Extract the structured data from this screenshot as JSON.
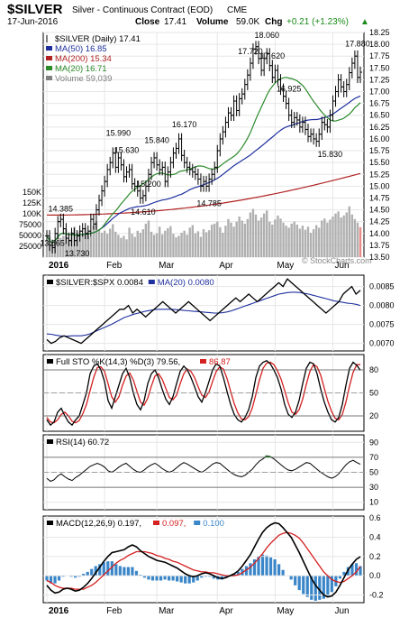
{
  "header": {
    "symbol": "$SILVER",
    "description": "Silver - Continuous Contract (EOD)",
    "exchange": "CME",
    "date": "17-Jun-2016",
    "close_label": "Close",
    "close_value": "17.41",
    "volume_label": "Volume",
    "volume_value": "59.0K",
    "chg_label": "Chg",
    "chg_value": "+0.21 (+1.23%)",
    "chg_arrow": "▲",
    "watermark": "© StockCharts.com"
  },
  "colors": {
    "price": "#000000",
    "ma50": "#1e2f9e",
    "ma200": "#b22222",
    "ma20": "#2a8a2a",
    "volume": "#b0b0b0",
    "volume_last": "#e88b8b",
    "stoch_k": "#000000",
    "stoch_d": "#d42020",
    "macd_line": "#000000",
    "macd_signal": "#d42020",
    "macd_hist": "#3a86c8",
    "rsi_fill": "#2f7d32",
    "ratio_ma": "#1e2f9e",
    "chg_up": "#1a8a1a",
    "grid": "#e6e6e6"
  },
  "chart_data": [
    {
      "type": "ohlc",
      "panel": "price",
      "legend": [
        {
          "text": "$SILVER (Daily) 17.41",
          "color": "#000000",
          "marker": "ohlc-icon"
        },
        {
          "text": "MA(50) 16.85",
          "color": "#1e2f9e"
        },
        {
          "text": "MA(200) 15.34",
          "color": "#b22222"
        },
        {
          "text": "MA(20) 16.71",
          "color": "#2a8a2a"
        },
        {
          "text": "Volume 59,039",
          "color": "#808080"
        }
      ],
      "x_labels": [
        "2016",
        "Feb",
        "Mar",
        "Apr",
        "May",
        "Jun"
      ],
      "y_ticks": [
        "18.25",
        "18.00",
        "17.75",
        "17.50",
        "17.25",
        "17.00",
        "16.75",
        "16.50",
        "16.25",
        "16.00",
        "15.75",
        "15.50",
        "15.25",
        "15.00",
        "14.75",
        "14.50",
        "14.25",
        "14.00",
        "13.75",
        "13.50"
      ],
      "ylim": [
        13.5,
        18.25
      ],
      "annotations": [
        {
          "label": "18.060",
          "value": 18.06,
          "bar": 80
        },
        {
          "label": "17.880",
          "value": 17.88,
          "bar": 113
        },
        {
          "label": "17.720",
          "value": 17.72,
          "bar": 74
        },
        {
          "label": "17.620",
          "value": 17.62,
          "bar": 82
        },
        {
          "label": "16.925",
          "value": 16.925,
          "bar": 88
        },
        {
          "label": "16.170",
          "value": 16.17,
          "bar": 50
        },
        {
          "label": "15.990",
          "value": 15.99,
          "bar": 26
        },
        {
          "label": "15.840",
          "value": 15.84,
          "bar": 40
        },
        {
          "label": "15.630",
          "value": 15.63,
          "bar": 29
        },
        {
          "label": "15.830",
          "value": 15.83,
          "bar": 103
        },
        {
          "label": "15.200",
          "value": 15.2,
          "bar": 37
        },
        {
          "label": "14.785",
          "value": 14.785,
          "bar": 59
        },
        {
          "label": "14.610",
          "value": 14.61,
          "bar": 35
        },
        {
          "label": "14.385",
          "value": 14.385,
          "bar": 5
        },
        {
          "label": "13.730",
          "value": 13.73,
          "bar": 11
        },
        {
          "label": "13.665",
          "value": 13.665,
          "bar": 2
        }
      ],
      "close": [
        13.95,
        13.75,
        13.7,
        14.0,
        14.25,
        14.3,
        14.1,
        13.9,
        13.85,
        14.0,
        13.85,
        13.95,
        14.05,
        14.1,
        14.0,
        14.05,
        14.3,
        14.2,
        14.5,
        14.7,
        14.9,
        15.1,
        15.35,
        15.5,
        15.7,
        15.4,
        15.6,
        15.45,
        15.2,
        15.3,
        15.35,
        15.05,
        15.0,
        14.9,
        14.75,
        14.8,
        15.0,
        15.25,
        15.5,
        15.6,
        15.45,
        15.35,
        15.4,
        15.1,
        15.3,
        15.5,
        15.7,
        15.8,
        16.0,
        15.65,
        15.5,
        15.4,
        15.35,
        15.3,
        15.25,
        15.15,
        15.0,
        15.1,
        15.0,
        15.15,
        15.25,
        15.4,
        15.75,
        16.0,
        16.15,
        16.35,
        16.55,
        16.5,
        16.8,
        16.6,
        16.85,
        16.95,
        17.15,
        17.35,
        17.6,
        17.9,
        17.95,
        17.7,
        17.45,
        17.7,
        17.8,
        17.55,
        17.3,
        17.45,
        17.25,
        17.05,
        16.9,
        16.75,
        16.5,
        16.35,
        16.45,
        16.4,
        16.25,
        16.35,
        16.2,
        16.05,
        16.1,
        16.0,
        15.95,
        16.1,
        16.35,
        16.3,
        16.25,
        16.5,
        16.8,
        17.0,
        17.25,
        17.1,
        17.0,
        17.15,
        17.4,
        17.6,
        17.75,
        17.3,
        17.41
      ],
      "volume_k": [
        30,
        40,
        28,
        32,
        45,
        38,
        42,
        55,
        35,
        50,
        60,
        48,
        52,
        44,
        58,
        50,
        40,
        62,
        70,
        55,
        48,
        52,
        46,
        56,
        65,
        50,
        44,
        38,
        42,
        35,
        58,
        46,
        40,
        52,
        48,
        55,
        66,
        72,
        50,
        44,
        47,
        60,
        45,
        52,
        57,
        61,
        46,
        39,
        42,
        48,
        52,
        44,
        58,
        63,
        47,
        51,
        40,
        55,
        49,
        53,
        64,
        66,
        70,
        59,
        48,
        62,
        75,
        68,
        60,
        70,
        80,
        72,
        66,
        75,
        88,
        95,
        84,
        72,
        78,
        86,
        92,
        70,
        64,
        74,
        82,
        76,
        68,
        62,
        58,
        66,
        70,
        64,
        56,
        62,
        54,
        60,
        48,
        55,
        63,
        58,
        72,
        76,
        68,
        74,
        80,
        86,
        90,
        78,
        82,
        88,
        100,
        84,
        75,
        68,
        59
      ],
      "volume_ticks": [
        "150K",
        "125K",
        "100K",
        "75000",
        "50000",
        "25000"
      ]
    },
    {
      "type": "line",
      "panel": "ratio",
      "legend": [
        {
          "text": "$SILVER:$SPX 0.0084",
          "color": "#000000"
        },
        {
          "text": "MA(20) 0.0080",
          "color": "#1e2f9e"
        }
      ],
      "y_ticks": [
        "0.0085",
        "0.0080",
        "0.0075",
        "0.0070"
      ],
      "ylim": [
        0.0068,
        0.0088
      ],
      "values": [
        0.0071,
        0.007,
        0.00705,
        0.00715,
        0.0072,
        0.00715,
        0.0071,
        0.00705,
        0.007,
        0.0071,
        0.0072,
        0.0073,
        0.0074,
        0.0075,
        0.0076,
        0.0077,
        0.0078,
        0.0079,
        0.0079,
        0.008,
        0.0078,
        0.0079,
        0.0078,
        0.0077,
        0.0078,
        0.0079,
        0.008,
        0.0081,
        0.008,
        0.0079,
        0.0078,
        0.0079,
        0.008,
        0.0081,
        0.008,
        0.0079,
        0.0078,
        0.0077,
        0.0076,
        0.0077,
        0.0078,
        0.0079,
        0.008,
        0.0081,
        0.0082,
        0.0081,
        0.0082,
        0.0083,
        0.0082,
        0.0081,
        0.0082,
        0.0083,
        0.0084,
        0.0085,
        0.0086,
        0.0085,
        0.0087,
        0.0086,
        0.0085,
        0.0084,
        0.0083,
        0.0082,
        0.0081,
        0.008,
        0.0079,
        0.0078,
        0.0079,
        0.008,
        0.0081,
        0.0083,
        0.0084,
        0.0085,
        0.0083,
        0.0084
      ],
      "ma": [
        0.00725,
        0.00724,
        0.00722,
        0.0072,
        0.00719,
        0.00719,
        0.0072,
        0.0072,
        0.0072,
        0.00722,
        0.00725,
        0.0073,
        0.00735,
        0.0074,
        0.00745,
        0.0075,
        0.00756,
        0.00762,
        0.00768,
        0.00772,
        0.00776,
        0.00779,
        0.00782,
        0.00785,
        0.00787,
        0.00789,
        0.0079,
        0.0079,
        0.0079,
        0.0079,
        0.00789,
        0.00788,
        0.00787,
        0.00786,
        0.00785,
        0.00784,
        0.00783,
        0.00782,
        0.00781,
        0.0078,
        0.0078,
        0.00781,
        0.00783,
        0.00786,
        0.0079,
        0.00794,
        0.00798,
        0.00802,
        0.00806,
        0.0081,
        0.00814,
        0.00818,
        0.00822,
        0.00826,
        0.0083,
        0.00832,
        0.00834,
        0.00835,
        0.00835,
        0.00834,
        0.00832,
        0.0083,
        0.00827,
        0.00824,
        0.00821,
        0.00818,
        0.00815,
        0.00812,
        0.0081,
        0.00808,
        0.00806,
        0.00805,
        0.00803,
        0.008
      ]
    },
    {
      "type": "line",
      "panel": "stochastic",
      "legend": [
        {
          "text": "Full STO %K(14,3) %D(3) 79.56,",
          "color": "#000000"
        },
        {
          "text": "86.87",
          "color": "#d42020"
        }
      ],
      "y_ticks": [
        "80",
        "50",
        "20"
      ],
      "ylim": [
        0,
        100
      ],
      "k": [
        15,
        8,
        12,
        25,
        30,
        20,
        12,
        8,
        15,
        20,
        35,
        50,
        75,
        85,
        88,
        80,
        65,
        40,
        30,
        45,
        60,
        75,
        82,
        70,
        50,
        35,
        28,
        40,
        62,
        75,
        80,
        70,
        55,
        42,
        35,
        45,
        62,
        78,
        85,
        80,
        70,
        58,
        45,
        38,
        50,
        65,
        80,
        88,
        85,
        70,
        52,
        35,
        22,
        15,
        12,
        18,
        28,
        45,
        70,
        85,
        90,
        92,
        88,
        80,
        70,
        55,
        35,
        22,
        18,
        25,
        40,
        62,
        82,
        90,
        88,
        75,
        55,
        38,
        25,
        15,
        12,
        18,
        35,
        60,
        82,
        90,
        86,
        79.56
      ],
      "d": [
        18,
        12,
        11,
        15,
        22,
        25,
        20,
        13,
        11,
        14,
        23,
        35,
        53,
        70,
        83,
        84,
        78,
        62,
        45,
        38,
        45,
        60,
        72,
        76,
        67,
        52,
        38,
        34,
        43,
        59,
        72,
        75,
        68,
        56,
        44,
        41,
        47,
        62,
        75,
        81,
        78,
        70,
        58,
        47,
        44,
        51,
        65,
        78,
        84,
        81,
        69,
        52,
        36,
        24,
        16,
        15,
        19,
        30,
        48,
        67,
        82,
        89,
        90,
        87,
        79,
        68,
        53,
        37,
        25,
        22,
        28,
        42,
        61,
        78,
        87,
        84,
        73,
        56,
        39,
        26,
        17,
        15,
        22,
        38,
        59,
        77,
        86.87,
        86.87
      ]
    },
    {
      "type": "line",
      "panel": "rsi",
      "legend": [
        {
          "text": "RSI(14) 60.72",
          "color": "#000000"
        }
      ],
      "y_ticks": [
        "90",
        "70",
        "50",
        "30",
        "10"
      ],
      "ylim": [
        0,
        100
      ],
      "values": [
        42,
        38,
        40,
        45,
        48,
        44,
        41,
        39,
        43,
        46,
        50,
        54,
        58,
        60,
        62,
        60,
        57,
        52,
        50,
        53,
        57,
        60,
        62,
        58,
        54,
        51,
        50,
        53,
        57,
        60,
        62,
        59,
        55,
        52,
        50,
        52,
        56,
        60,
        63,
        61,
        58,
        55,
        52,
        50,
        53,
        57,
        61,
        63,
        62,
        58,
        54,
        50,
        47,
        45,
        44,
        46,
        50,
        54,
        60,
        65,
        68,
        72,
        71,
        68,
        64,
        60,
        56,
        53,
        52,
        54,
        57,
        60,
        63,
        62,
        58,
        54,
        50,
        47,
        44,
        42,
        44,
        48,
        54,
        60,
        64,
        66,
        63,
        60.72
      ]
    },
    {
      "type": "line",
      "panel": "macd",
      "legend": [
        {
          "text": "MACD(12,26,9) 0.197,",
          "color": "#000000"
        },
        {
          "text": "0.097,",
          "color": "#d42020"
        },
        {
          "text": "0.100",
          "color": "#3a86c8"
        }
      ],
      "y_ticks": [
        "0.6",
        "0.4",
        "0.2",
        "0.0",
        "-0.2"
      ],
      "ylim": [
        -0.28,
        0.62
      ],
      "macd": [
        -0.1,
        -0.15,
        -0.18,
        -0.17,
        -0.14,
        -0.13,
        -0.14,
        -0.16,
        -0.15,
        -0.12,
        -0.08,
        -0.03,
        0.03,
        0.09,
        0.15,
        0.2,
        0.24,
        0.25,
        0.26,
        0.27,
        0.3,
        0.32,
        0.3,
        0.26,
        0.23,
        0.2,
        0.18,
        0.16,
        0.15,
        0.14,
        0.12,
        0.1,
        0.08,
        0.05,
        0.02,
        0.0,
        -0.01,
        0.0,
        0.02,
        0.03,
        0.02,
        0.0,
        -0.02,
        -0.03,
        -0.02,
        0.0,
        0.02,
        0.05,
        0.1,
        0.16,
        0.22,
        0.3,
        0.38,
        0.45,
        0.5,
        0.53,
        0.55,
        0.54,
        0.5,
        0.45,
        0.4,
        0.32,
        0.24,
        0.15,
        0.06,
        -0.03,
        -0.1,
        -0.15,
        -0.2,
        -0.22,
        -0.21,
        -0.17,
        -0.1,
        -0.02,
        0.06,
        0.12,
        0.17,
        0.197
      ],
      "signal": [
        -0.05,
        -0.07,
        -0.1,
        -0.12,
        -0.13,
        -0.13,
        -0.13,
        -0.14,
        -0.14,
        -0.14,
        -0.12,
        -0.1,
        -0.07,
        -0.03,
        0.01,
        0.05,
        0.09,
        0.13,
        0.16,
        0.18,
        0.21,
        0.23,
        0.25,
        0.25,
        0.25,
        0.24,
        0.23,
        0.21,
        0.2,
        0.18,
        0.17,
        0.15,
        0.14,
        0.12,
        0.1,
        0.08,
        0.06,
        0.05,
        0.04,
        0.04,
        0.03,
        0.03,
        0.02,
        0.01,
        0.0,
        0.0,
        0.0,
        0.01,
        0.03,
        0.06,
        0.09,
        0.13,
        0.18,
        0.23,
        0.29,
        0.34,
        0.38,
        0.42,
        0.44,
        0.45,
        0.44,
        0.42,
        0.39,
        0.34,
        0.28,
        0.22,
        0.16,
        0.1,
        0.04,
        0.0,
        -0.04,
        -0.06,
        -0.07,
        -0.06,
        -0.03,
        0.0,
        0.04,
        0.097
      ]
    }
  ],
  "x_axis_bottom": [
    "2016",
    "Feb",
    "Mar",
    "Apr",
    "May",
    "Jun"
  ]
}
